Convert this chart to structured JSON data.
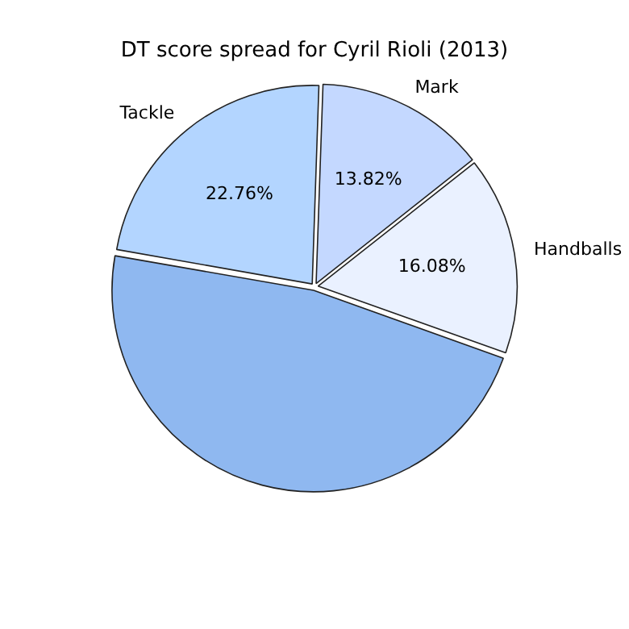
{
  "chart_data": {
    "type": "pie",
    "title": "DT score spread for Cyril Rioli (2013)",
    "categories": [
      "Tackle",
      "Mark",
      "Handballs",
      null
    ],
    "values": [
      22.76,
      13.82,
      16.08,
      47.34
    ],
    "colors": [
      "#b3d5ff",
      "#c4d8ff",
      "#eaf1ff",
      "#8fb8f0"
    ],
    "value_labels": [
      "22.76%",
      "13.82%",
      "16.08%",
      null
    ]
  }
}
